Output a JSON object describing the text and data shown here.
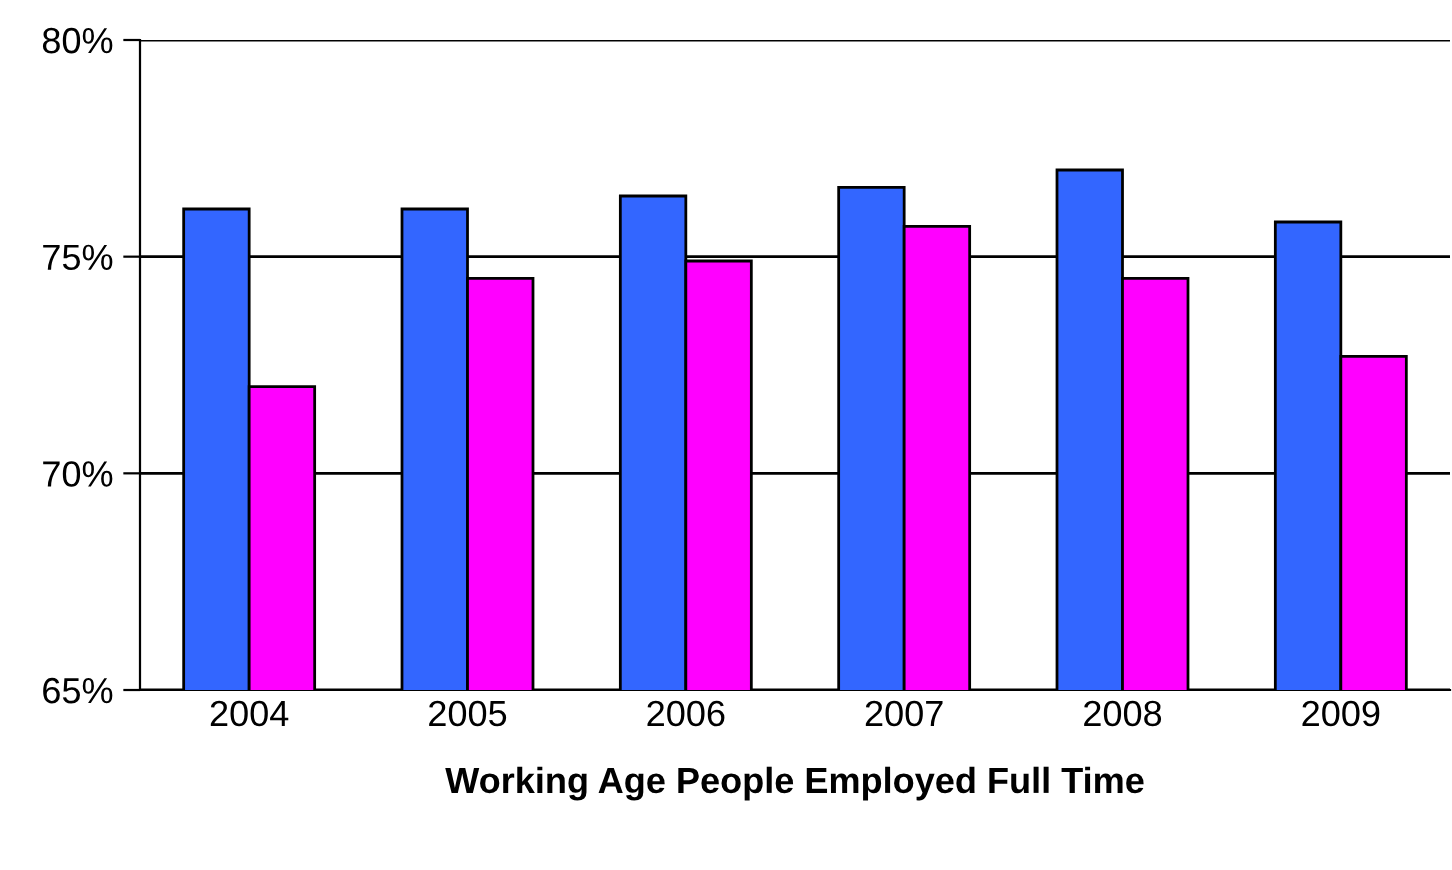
{
  "chart_data": {
    "type": "bar",
    "xlabel": "Working Age People Employed Full Time",
    "categories": [
      "2004",
      "2005",
      "2006",
      "2007",
      "2008",
      "2009"
    ],
    "series": [
      {
        "color": "#3366ff",
        "values": [
          76.1,
          76.1,
          76.4,
          76.6,
          77.0,
          75.8
        ]
      },
      {
        "color": "#ff00ff",
        "values": [
          72.0,
          74.5,
          74.9,
          75.7,
          74.5,
          72.7
        ]
      }
    ],
    "ylim": [
      65,
      80
    ],
    "yticks": [
      {
        "value": 65,
        "label": "65%"
      },
      {
        "value": 70,
        "label": "70%"
      },
      {
        "value": 75,
        "label": "75%"
      },
      {
        "value": 80,
        "label": "80%"
      }
    ],
    "grid": "y",
    "legend": false
  }
}
